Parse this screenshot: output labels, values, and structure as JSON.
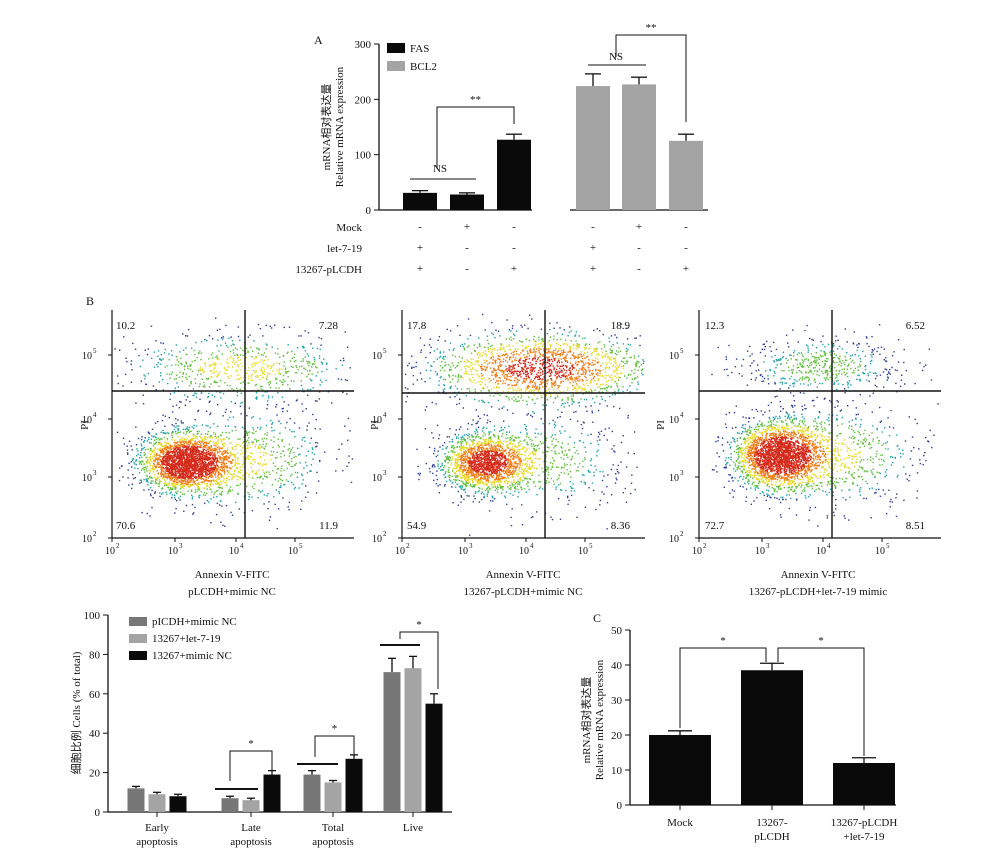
{
  "colors": {
    "black": "#0a0a0a",
    "gray_light": "#a4a4a4",
    "gray_dark": "#777777"
  },
  "chart_data": [
    {
      "panel": "A",
      "type": "bar",
      "ylabel": "mRNA相对表达量",
      "ylabel2": "Relative mRNA expression",
      "ylim": [
        0,
        300
      ],
      "yticks": [
        "0",
        "100",
        "200",
        "300"
      ],
      "legend": [
        {
          "name": "FAS",
          "color": "#0a0a0a"
        },
        {
          "name": "BCL2",
          "color": "#a4a4a4"
        }
      ],
      "bars": [
        {
          "series": "FAS",
          "value": 31,
          "err": 4
        },
        {
          "series": "FAS",
          "value": 28,
          "err": 3
        },
        {
          "series": "FAS",
          "value": 127,
          "err": 10
        },
        {
          "series": "BCL2",
          "value": 224,
          "err": 22
        },
        {
          "series": "BCL2",
          "value": 227,
          "err": 13
        },
        {
          "series": "BCL2",
          "value": 125,
          "err": 12
        }
      ],
      "conditions": [
        {
          "label": "Mock",
          "marks": [
            "-",
            "+",
            "-",
            "-",
            "+",
            "-"
          ]
        },
        {
          "label": "let-7-19",
          "marks": [
            "+",
            "-",
            "-",
            "+",
            "-",
            "-"
          ]
        },
        {
          "label": "13267-pLCDH",
          "marks": [
            "+",
            "-",
            "+",
            "+",
            "-",
            "+"
          ]
        }
      ],
      "annotations": [
        {
          "text": "NS",
          "bars": [
            0,
            2
          ]
        },
        {
          "text": "**",
          "bars": [
            1,
            3
          ]
        },
        {
          "text": "NS",
          "bars": [
            4,
            5
          ]
        },
        {
          "text": "**",
          "bars": [
            5,
            6
          ]
        }
      ]
    },
    {
      "panel": "B",
      "type": "scatter",
      "plots": [
        {
          "xlabel": "Annexin V-FITC",
          "sublabel": "pLCDH+mimic NC",
          "ylabel": "PI",
          "quadrants": [
            "10.2",
            "7.28",
            "70.6",
            "11.9"
          ]
        },
        {
          "xlabel": "Annexin V-FITC",
          "sublabel": "13267-pLCDH+mimic NC",
          "ylabel": "PI",
          "quadrants": [
            "17.8",
            "18.9",
            "54.9",
            "8.36"
          ]
        },
        {
          "xlabel": "Annexin V-FITC",
          "sublabel": "13267-pLCDH+let-7-19 mimic",
          "ylabel": "PI",
          "quadrants": [
            "12.3",
            "6.52",
            "72.7",
            "8.51"
          ]
        }
      ],
      "axis_ticks": [
        "10",
        "10",
        "10",
        "10"
      ],
      "axis_exps": [
        "2",
        "3",
        "4",
        "5"
      ]
    },
    {
      "panel": "B-bar",
      "type": "bar",
      "ylabel": "细胞比例 Cells (% of total)",
      "ylim": [
        0,
        100
      ],
      "yticks": [
        "0",
        "20",
        "40",
        "60",
        "80",
        "100"
      ],
      "categories": [
        "Early\napoptosis",
        "Late\napoptosis",
        "Total\napoptosis",
        "Live"
      ],
      "series": [
        {
          "name": "pICDH+mimic NC",
          "color": "#777777",
          "values": [
            12,
            7,
            19,
            71
          ],
          "err": [
            1,
            1,
            2,
            7
          ]
        },
        {
          "name": "13267+let-7-19",
          "color": "#a4a4a4",
          "values": [
            9,
            6,
            15,
            73
          ],
          "err": [
            1,
            1,
            1,
            6
          ]
        },
        {
          "name": "13267+mimic NC",
          "color": "#0a0a0a",
          "values": [
            8,
            19,
            27,
            55
          ],
          "err": [
            1,
            2,
            2,
            5
          ]
        }
      ],
      "annotations": [
        {
          "text": "*",
          "category": 1
        },
        {
          "text": "*",
          "category": 2
        },
        {
          "text": "*",
          "category": 3
        }
      ]
    },
    {
      "panel": "C",
      "type": "bar",
      "ylabel": "mRNA相对表达量",
      "ylabel2": "Relative mRNA expression",
      "ylim": [
        0,
        50
      ],
      "yticks": [
        "0",
        "10",
        "20",
        "30",
        "40",
        "50"
      ],
      "categories": [
        "Mock",
        "13267-\npLCDH",
        "13267-pLCDH\n+let-7-19"
      ],
      "values": [
        20,
        38.5,
        12
      ],
      "err": [
        1.2,
        2,
        1.5
      ],
      "annotations": [
        {
          "text": "*",
          "bars": [
            0,
            1
          ]
        },
        {
          "text": "*",
          "bars": [
            1,
            2
          ]
        }
      ]
    }
  ]
}
